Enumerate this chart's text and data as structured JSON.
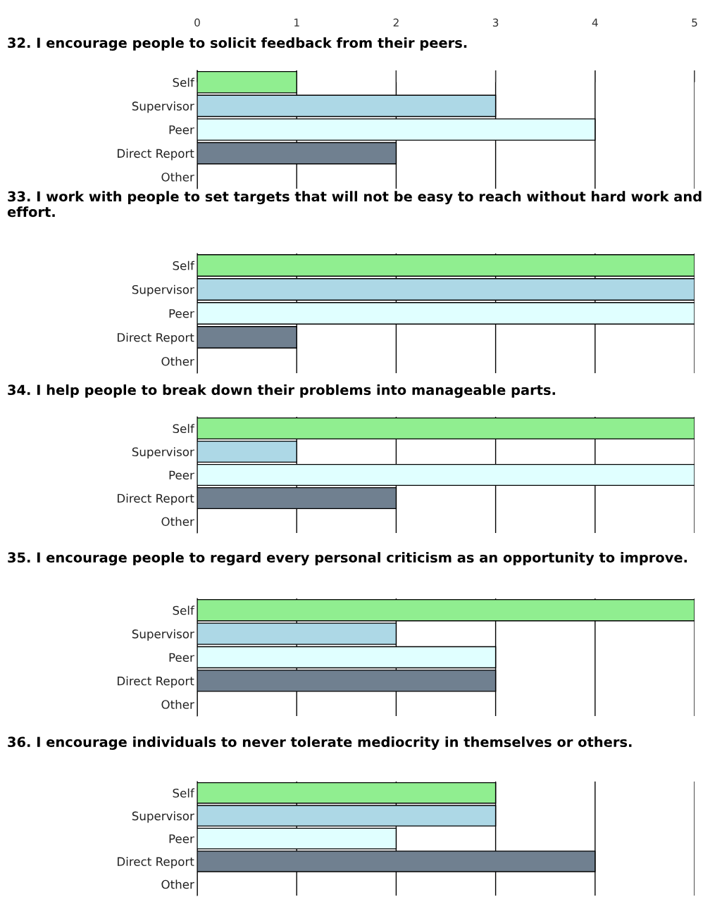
{
  "chart_data": [
    {
      "type": "bar",
      "orientation": "horizontal",
      "title": "32. I encourage people to solicit feedback from their peers.",
      "categories": [
        "Self",
        "Supervisor",
        "Peer",
        "Direct Report",
        "Other"
      ],
      "values": [
        1,
        3,
        4,
        2,
        null
      ],
      "colors": [
        "#90ee90",
        "#add8e6",
        "#e0ffff",
        "#708090",
        "#ffffff"
      ],
      "xlim": [
        0,
        5
      ],
      "xticks": [
        0,
        1,
        2,
        3,
        4,
        5
      ],
      "grid": "x"
    },
    {
      "type": "bar",
      "orientation": "horizontal",
      "title": "33. I work with people to set targets that will not be easy to reach without hard work and effort.",
      "categories": [
        "Self",
        "Supervisor",
        "Peer",
        "Direct Report",
        "Other"
      ],
      "values": [
        5,
        5,
        5,
        1,
        null
      ],
      "colors": [
        "#90ee90",
        "#add8e6",
        "#e0ffff",
        "#708090",
        "#ffffff"
      ],
      "xlim": [
        0,
        5
      ],
      "xticks": [
        0,
        1,
        2,
        3,
        4,
        5
      ],
      "grid": "x",
      "tick_labels": "y"
    },
    {
      "type": "bar",
      "orientation": "horizontal",
      "title": "34. I help people to break down their problems into manageable parts.",
      "categories": [
        "Self",
        "Supervisor",
        "Peer",
        "Direct Report",
        "Other"
      ],
      "values": [
        5,
        1,
        5,
        2,
        null
      ],
      "colors": [
        "#90ee90",
        "#add8e6",
        "#e0ffff",
        "#708090",
        "#ffffff"
      ],
      "xlim": [
        0,
        5
      ],
      "xticks": [
        0,
        1,
        2,
        3,
        4,
        5
      ],
      "grid": "x",
      "tick_labels": "y"
    },
    {
      "type": "bar",
      "orientation": "horizontal",
      "title": "35. I encourage people to regard every personal criticism as an opportunity to improve.",
      "categories": [
        "Self",
        "Supervisor",
        "Peer",
        "Direct Report",
        "Other"
      ],
      "values": [
        5,
        2,
        3,
        3,
        null
      ],
      "colors": [
        "#90ee90",
        "#add8e6",
        "#e0ffff",
        "#708090",
        "#ffffff"
      ],
      "xlim": [
        0,
        5
      ],
      "xticks": [
        0,
        1,
        2,
        3,
        4,
        5
      ],
      "grid": "x",
      "tick_labels": "y"
    },
    {
      "type": "bar",
      "orientation": "horizontal",
      "title": "36. I encourage individuals to never tolerate mediocrity in themselves or others.",
      "categories": [
        "Self",
        "Supervisor",
        "Peer",
        "Direct Report",
        "Other"
      ],
      "values": [
        3,
        3,
        2,
        4,
        null
      ],
      "colors": [
        "#90ee90",
        "#add8e6",
        "#e0ffff",
        "#708090",
        "#ffffff"
      ],
      "xlim": [
        0,
        5
      ],
      "xticks": [
        0,
        1,
        2,
        3,
        4,
        5
      ],
      "grid": "x",
      "tick_labels": "y"
    }
  ]
}
